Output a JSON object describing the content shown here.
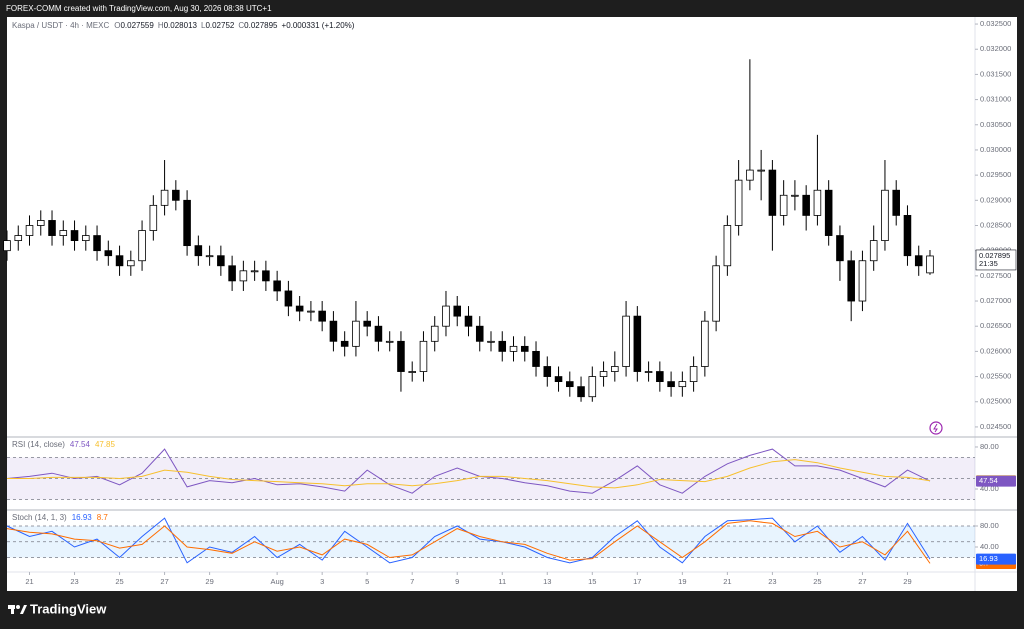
{
  "header": {
    "text": "FOREX-COMM created with TradingView.com, Aug 30, 2026 08:38 UTC+1"
  },
  "footer": {
    "brand": "TradingView"
  },
  "chart_data": [
    {
      "type": "candlestick",
      "symbol": "Kaspa / USDT · 4h · MEXC",
      "ohlc_labels": [
        "O",
        "H",
        "L",
        "C"
      ],
      "change": "+0.000331 (+1.20%)",
      "countdown": "21:35",
      "up_color": "#ffffff",
      "down_color": "#000000",
      "outline_color": "#000000",
      "change_color": "#089981",
      "x": [
        -1,
        -0.5,
        0,
        0.5,
        1,
        1.5,
        2,
        2.5,
        3,
        3.5,
        4,
        4.5,
        5,
        5.5,
        6,
        6.5,
        7,
        7.5,
        8,
        8.5,
        9,
        9.5,
        10,
        10.5,
        11,
        11.5,
        12,
        12.5,
        13,
        13.5,
        14,
        14.5,
        15,
        15.5,
        16,
        16.5,
        17,
        17.5,
        18,
        18.5,
        19,
        19.5,
        20,
        20.5,
        21,
        21.5,
        22,
        22.5,
        23,
        23.5,
        24,
        24.5,
        25,
        25.5,
        26,
        26.5,
        27,
        27.5,
        28,
        28.5,
        29,
        29.5,
        30,
        30.5,
        31,
        31.5,
        32,
        32.5,
        33,
        33.5,
        34,
        34.5,
        35,
        35.5,
        36,
        36.5,
        37,
        37.5,
        38,
        38.5,
        39,
        39.5,
        40
      ],
      "open": [
        0.028,
        0.0282,
        0.0283,
        0.0285,
        0.0286,
        0.0283,
        0.0284,
        0.0282,
        0.0283,
        0.028,
        0.0279,
        0.0277,
        0.0278,
        0.0284,
        0.0289,
        0.0292,
        0.029,
        0.0281,
        0.0279,
        0.0279,
        0.0277,
        0.0274,
        0.0276,
        0.0276,
        0.0274,
        0.0272,
        0.0269,
        0.0268,
        0.0268,
        0.0266,
        0.0262,
        0.0261,
        0.0266,
        0.0265,
        0.0262,
        0.0262,
        0.0256,
        0.0256,
        0.0262,
        0.0265,
        0.0269,
        0.0267,
        0.0265,
        0.0262,
        0.0262,
        0.026,
        0.0261,
        0.026,
        0.0257,
        0.0255,
        0.0254,
        0.0253,
        0.0251,
        0.0255,
        0.0256,
        0.0257,
        0.0267,
        0.0256,
        0.0256,
        0.0254,
        0.0253,
        0.0254,
        0.0257,
        0.0266,
        0.0277,
        0.0285,
        0.0294,
        0.0296,
        0.0296,
        0.0287,
        0.0291,
        0.0291,
        0.0287,
        0.0292,
        0.0283,
        0.0278,
        0.027,
        0.0278,
        0.0282,
        0.0292,
        0.0287,
        0.0279,
        0.027559
      ],
      "high": [
        0.0284,
        0.0285,
        0.0287,
        0.0288,
        0.0288,
        0.0286,
        0.0286,
        0.0285,
        0.0285,
        0.0282,
        0.0281,
        0.028,
        0.0286,
        0.0291,
        0.0298,
        0.0294,
        0.0292,
        0.0283,
        0.0281,
        0.0281,
        0.0279,
        0.0278,
        0.0278,
        0.0278,
        0.0276,
        0.0274,
        0.0271,
        0.027,
        0.027,
        0.0268,
        0.0264,
        0.027,
        0.0268,
        0.0267,
        0.0264,
        0.0264,
        0.0258,
        0.0264,
        0.0267,
        0.0272,
        0.0271,
        0.0269,
        0.0267,
        0.0264,
        0.0264,
        0.0263,
        0.0263,
        0.0262,
        0.0259,
        0.0257,
        0.0256,
        0.0255,
        0.0257,
        0.0258,
        0.026,
        0.027,
        0.0269,
        0.0258,
        0.0258,
        0.0256,
        0.0256,
        0.0259,
        0.0268,
        0.0279,
        0.0287,
        0.0298,
        0.0318,
        0.03,
        0.0298,
        0.0294,
        0.0294,
        0.0293,
        0.0303,
        0.0294,
        0.0285,
        0.028,
        0.028,
        0.0285,
        0.0298,
        0.0294,
        0.0289,
        0.0281,
        0.028013
      ],
      "low": [
        0.0278,
        0.028,
        0.0281,
        0.0283,
        0.0281,
        0.0281,
        0.028,
        0.028,
        0.0278,
        0.0277,
        0.0275,
        0.0275,
        0.0276,
        0.0282,
        0.0287,
        0.0288,
        0.0279,
        0.0277,
        0.0277,
        0.0275,
        0.0272,
        0.0272,
        0.0274,
        0.0272,
        0.027,
        0.0267,
        0.0266,
        0.0266,
        0.0264,
        0.026,
        0.0259,
        0.0259,
        0.0263,
        0.026,
        0.026,
        0.0252,
        0.0254,
        0.0254,
        0.026,
        0.0263,
        0.0265,
        0.0263,
        0.026,
        0.026,
        0.0258,
        0.0258,
        0.0258,
        0.0255,
        0.0253,
        0.0252,
        0.0251,
        0.025,
        0.025,
        0.0253,
        0.0254,
        0.0255,
        0.0254,
        0.0254,
        0.0252,
        0.0251,
        0.0251,
        0.0252,
        0.0255,
        0.0264,
        0.0275,
        0.0283,
        0.0292,
        0.029,
        0.028,
        0.0285,
        0.0288,
        0.0284,
        0.0285,
        0.0281,
        0.0274,
        0.0266,
        0.0268,
        0.0276,
        0.028,
        0.0285,
        0.0277,
        0.0275,
        0.02752
      ],
      "close": [
        0.0282,
        0.0283,
        0.0285,
        0.0286,
        0.0283,
        0.0284,
        0.0282,
        0.0283,
        0.028,
        0.0279,
        0.0277,
        0.0278,
        0.0284,
        0.0289,
        0.0292,
        0.029,
        0.0281,
        0.0279,
        0.0279,
        0.0277,
        0.0274,
        0.0276,
        0.0276,
        0.0274,
        0.0272,
        0.0269,
        0.0268,
        0.0268,
        0.0266,
        0.0262,
        0.0261,
        0.0266,
        0.0265,
        0.0262,
        0.0262,
        0.0256,
        0.0256,
        0.0262,
        0.0265,
        0.0269,
        0.0267,
        0.0265,
        0.0262,
        0.0262,
        0.026,
        0.0261,
        0.026,
        0.0257,
        0.0255,
        0.0254,
        0.0253,
        0.0251,
        0.0255,
        0.0256,
        0.0257,
        0.0267,
        0.0256,
        0.0256,
        0.0254,
        0.0253,
        0.0254,
        0.0257,
        0.0266,
        0.0277,
        0.0285,
        0.0294,
        0.0296,
        0.0296,
        0.0287,
        0.0291,
        0.0291,
        0.0287,
        0.0292,
        0.0283,
        0.0278,
        0.027,
        0.0278,
        0.0282,
        0.0292,
        0.0287,
        0.0279,
        0.0277,
        0.027895
      ],
      "xlim": [
        -1,
        42
      ],
      "xticks": [
        {
          "value": 0,
          "label": "21"
        },
        {
          "value": 2,
          "label": "23"
        },
        {
          "value": 4,
          "label": "25"
        },
        {
          "value": 6,
          "label": "27"
        },
        {
          "value": 8,
          "label": "29"
        },
        {
          "value": 11,
          "label": "Aug"
        },
        {
          "value": 13,
          "label": "3"
        },
        {
          "value": 15,
          "label": "5"
        },
        {
          "value": 17,
          "label": "7"
        },
        {
          "value": 19,
          "label": "9"
        },
        {
          "value": 21,
          "label": "11"
        },
        {
          "value": 23,
          "label": "13"
        },
        {
          "value": 25,
          "label": "15"
        },
        {
          "value": 27,
          "label": "17"
        },
        {
          "value": 29,
          "label": "19"
        },
        {
          "value": 31,
          "label": "21"
        },
        {
          "value": 33,
          "label": "23"
        },
        {
          "value": 35,
          "label": "25"
        },
        {
          "value": 37,
          "label": "27"
        },
        {
          "value": 39,
          "label": "29"
        }
      ],
      "ylim": [
        0.0243,
        0.03264
      ],
      "yticks": [
        {
          "value": 0.0325,
          "label": "0.032500"
        },
        {
          "value": 0.032,
          "label": "0.032000"
        },
        {
          "value": 0.0315,
          "label": "0.031500"
        },
        {
          "value": 0.031,
          "label": "0.031000"
        },
        {
          "value": 0.0305,
          "label": "0.030500"
        },
        {
          "value": 0.03,
          "label": "0.030000"
        },
        {
          "value": 0.0295,
          "label": "0.029500"
        },
        {
          "value": 0.029,
          "label": "0.029000"
        },
        {
          "value": 0.0285,
          "label": "0.028500"
        },
        {
          "value": 0.028,
          "label": "0.028000"
        },
        {
          "value": 0.0275,
          "label": "0.027500"
        },
        {
          "value": 0.027,
          "label": "0.027000"
        },
        {
          "value": 0.0265,
          "label": "0.026500"
        },
        {
          "value": 0.026,
          "label": "0.026000"
        },
        {
          "value": 0.0255,
          "label": "0.025500"
        },
        {
          "value": 0.025,
          "label": "0.025000"
        },
        {
          "value": 0.0245,
          "label": "0.024500"
        }
      ]
    },
    {
      "type": "line",
      "title": "RSI (14, close)",
      "band_color": "#7e57c2",
      "bands": [
        30,
        50,
        70
      ],
      "x": [
        -1,
        0,
        1,
        2,
        3,
        4,
        5,
        6,
        7,
        8,
        9,
        10,
        11,
        12,
        13,
        14,
        15,
        16,
        17,
        18,
        19,
        20,
        21,
        22,
        23,
        24,
        25,
        26,
        27,
        28,
        29,
        30,
        31,
        32,
        33,
        34,
        35,
        36,
        37,
        38,
        39,
        40
      ],
      "series": [
        {
          "color": "#7e57c2",
          "values": [
            50,
            52,
            55,
            50,
            52,
            44,
            55,
            78,
            42,
            48,
            46,
            50,
            44,
            45,
            42,
            38,
            58,
            44,
            36,
            52,
            60,
            52,
            50,
            46,
            43,
            38,
            36,
            48,
            62,
            44,
            36,
            52,
            64,
            72,
            78,
            62,
            62,
            58,
            50,
            42,
            58,
            47.54
          ]
        },
        {
          "color": "#f7c02d",
          "values": [
            50,
            50,
            51,
            51,
            51,
            50,
            52,
            58,
            56,
            52,
            49,
            48,
            47,
            46,
            45,
            43,
            45,
            45,
            43,
            45,
            48,
            52,
            52,
            50,
            48,
            45,
            42,
            41,
            44,
            49,
            48,
            47,
            52,
            60,
            66,
            68,
            65,
            60,
            56,
            52,
            51,
            47.85
          ]
        }
      ],
      "ylim": [
        20,
        89.5
      ],
      "yticks": [
        {
          "value": 80,
          "label": "80.00"
        },
        {
          "value": 40,
          "label": "40.00"
        }
      ]
    },
    {
      "type": "line",
      "title": "Stoch (14, 1, 3)",
      "band_color": "#2196f3",
      "bands": [
        20,
        50,
        80
      ],
      "x": [
        -1,
        0,
        1,
        2,
        3,
        4,
        5,
        6,
        7,
        8,
        9,
        10,
        11,
        12,
        13,
        14,
        15,
        16,
        17,
        18,
        19,
        20,
        21,
        22,
        23,
        24,
        25,
        26,
        27,
        28,
        29,
        30,
        31,
        32,
        33,
        34,
        35,
        36,
        37,
        38,
        39,
        40
      ],
      "series": [
        {
          "color": "#2962ff",
          "values": [
            80,
            60,
            70,
            40,
            55,
            20,
            60,
            95,
            10,
            40,
            30,
            60,
            20,
            45,
            15,
            70,
            40,
            10,
            20,
            60,
            80,
            55,
            50,
            40,
            20,
            10,
            20,
            60,
            90,
            40,
            10,
            60,
            90,
            92,
            95,
            50,
            80,
            30,
            60,
            15,
            85,
            16.93
          ]
        },
        {
          "color": "#ff6d00",
          "values": [
            75,
            68,
            65,
            55,
            52,
            38,
            45,
            80,
            40,
            35,
            28,
            50,
            32,
            40,
            25,
            55,
            45,
            20,
            25,
            50,
            75,
            60,
            50,
            45,
            28,
            15,
            18,
            50,
            80,
            50,
            20,
            50,
            85,
            90,
            85,
            60,
            70,
            40,
            50,
            25,
            70,
            8.7
          ]
        }
      ],
      "ylim": [
        -7.6,
        110.5
      ],
      "yticks": [
        {
          "value": 80,
          "label": "80.00"
        },
        {
          "value": 40,
          "label": "40.00"
        }
      ]
    }
  ]
}
